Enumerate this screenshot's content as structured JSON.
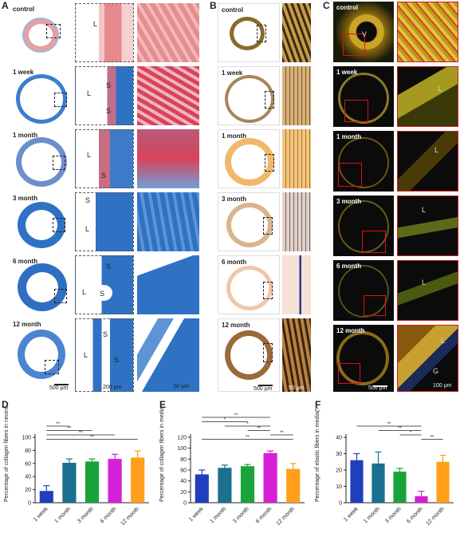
{
  "panels": {
    "A": {
      "letter": "A",
      "rows": [
        "control",
        "1 week",
        "1 month",
        "3 month",
        "6 month",
        "12 month"
      ],
      "scale1": "500 μm",
      "scale2": "200 μm",
      "scale3": "50 μm"
    },
    "B": {
      "letter": "B",
      "rows": [
        "control",
        "1 week",
        "1 month",
        "3 month",
        "6 month",
        "12 month"
      ],
      "scale1": "500 μm",
      "scale2": "50 μm"
    },
    "C": {
      "letter": "C",
      "rows": [
        "control",
        "1 week",
        "1 month",
        "3 month",
        "6 month",
        "12 month"
      ],
      "scale1": "500 μm",
      "scale2": "100 μm"
    }
  },
  "tissue_letters": {
    "L": "L",
    "S": "S",
    "V": "V",
    "G": "G"
  },
  "colors": {
    "blue_stain": "#2f72c4",
    "red_stain": "#e07a7a",
    "orange_stain": "#e7a65b",
    "fluor_bg": "#0b0b0b",
    "fluor_yellow": "#d9c23a",
    "roi_red": "#d11a1a",
    "bar_blue": "#1f3fbf",
    "bar_teal": "#1b6f8f",
    "bar_green": "#1aa33a",
    "bar_magenta": "#d520d5",
    "bar_orange": "#ff9f1a"
  },
  "chart_data": [
    {
      "panel": "D",
      "type": "bar",
      "categories": [
        "1 week",
        "1 month",
        "3 month",
        "6 month",
        "12 month"
      ],
      "values": [
        18,
        61,
        63,
        67,
        69
      ],
      "errors": [
        8,
        6,
        4,
        7,
        10
      ],
      "ylabel": "Percentage of collagen fibers in neointima(%)",
      "ylim": [
        0,
        100
      ],
      "yticks": [
        0,
        20,
        40,
        60,
        80,
        100
      ],
      "significance": [
        "**",
        "**",
        "**",
        "**"
      ]
    },
    {
      "panel": "E",
      "type": "bar",
      "categories": [
        "1 week",
        "1 month",
        "3 month",
        "6 month",
        "12 month"
      ],
      "values": [
        52,
        64,
        67,
        91,
        62
      ],
      "errors": [
        8,
        5,
        3,
        4,
        10
      ],
      "ylabel": "Percentage of collagen fibers in media(%)",
      "ylim": [
        0,
        120
      ],
      "yticks": [
        0,
        20,
        40,
        60,
        80,
        100,
        120
      ],
      "significance": [
        "**",
        "*",
        "*",
        "**",
        "**",
        "**"
      ]
    },
    {
      "panel": "F",
      "type": "bar",
      "categories": [
        "1 week",
        "1 month",
        "3 month",
        "6 month",
        "12 month"
      ],
      "values": [
        26,
        24,
        19,
        4,
        25
      ],
      "errors": [
        4,
        7,
        2,
        3,
        4
      ],
      "ylabel": "Percentage of elastic fibers in media(%)",
      "ylim": [
        0,
        40
      ],
      "yticks": [
        0,
        10,
        20,
        30,
        40
      ],
      "significance": [
        "**",
        "**",
        "*",
        "**"
      ]
    }
  ]
}
